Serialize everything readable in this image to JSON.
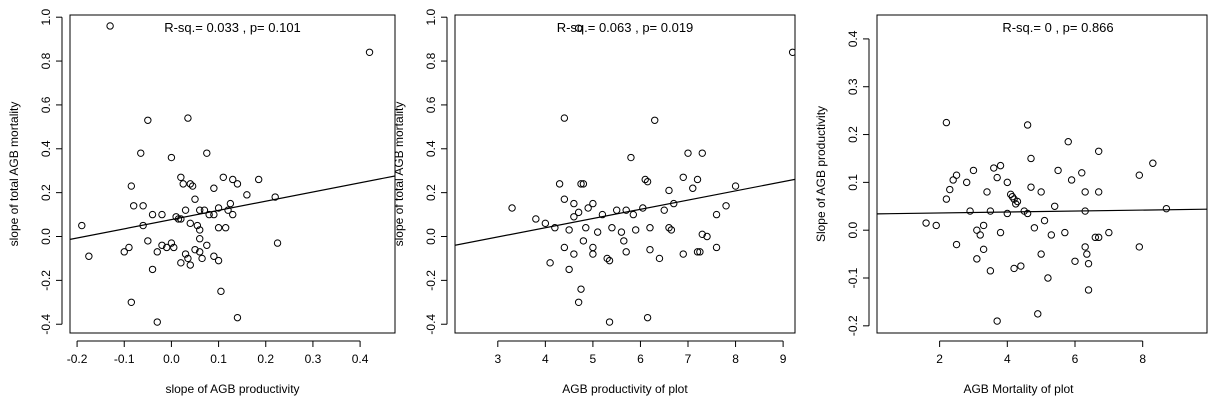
{
  "chart_data": [
    {
      "type": "scatter",
      "annotation": "R-sq.= 0.033 , p= 0.101",
      "x_label": "slope of AGB productivity",
      "y_label": "slope of total AGB mortality",
      "xlim": [
        -0.215,
        0.474
      ],
      "ylim": [
        -0.44,
        1.01
      ],
      "xticks": [
        -0.2,
        -0.1,
        {
          "value": 0,
          "label": "0.0"
        },
        0.1,
        0.2,
        0.3,
        0.4
      ],
      "yticks": [
        -0.4,
        -0.2,
        {
          "value": 0,
          "label": "0.0"
        },
        0.2,
        0.4,
        0.6,
        0.8,
        {
          "value": 1,
          "label": "1.0"
        }
      ],
      "fit": {
        "intercept": 0.077,
        "slope": 0.42
      },
      "x": [
        -0.13,
        0.42,
        -0.19,
        -0.175,
        -0.05,
        0.035,
        -0.065,
        0.075,
        0,
        -0.085,
        -0.08,
        -0.06,
        0.02,
        0.025,
        0.04,
        0.045,
        0.05,
        0.09,
        0.11,
        0.13,
        0.14,
        0.16,
        0.185,
        0.22,
        0.225,
        0.06,
        0.07,
        0.08,
        0.09,
        0.1,
        0.12,
        0.125,
        0.13,
        -0.04,
        -0.02,
        0.01,
        0.015,
        0.02,
        0.03,
        0.04,
        0.055,
        0.06,
        0.1,
        0.115,
        -0.1,
        -0.09,
        -0.06,
        -0.05,
        -0.03,
        -0.02,
        -0.01,
        0,
        0.005,
        0.02,
        0.03,
        0.035,
        0.04,
        0.05,
        0.06,
        0.065,
        0.075,
        0.09,
        0.1,
        0.105,
        -0.085,
        -0.03,
        0.14,
        0.06,
        -0.04
      ],
      "values": [
        0.96,
        0.84,
        0.05,
        -0.09,
        0.53,
        0.54,
        0.38,
        0.38,
        0.36,
        0.23,
        0.14,
        0.14,
        0.27,
        0.24,
        0.24,
        0.23,
        0.17,
        0.22,
        0.27,
        0.26,
        0.24,
        0.19,
        0.26,
        0.18,
        -0.03,
        0.12,
        0.12,
        0.1,
        0.1,
        0.13,
        0.12,
        0.15,
        0.1,
        0.1,
        0.1,
        0.09,
        0.08,
        0.08,
        0.12,
        0.06,
        0.05,
        0.03,
        0.04,
        0.04,
        -0.07,
        -0.05,
        0.05,
        -0.02,
        -0.07,
        -0.04,
        -0.05,
        -0.03,
        -0.05,
        -0.12,
        -0.08,
        -0.1,
        -0.13,
        -0.06,
        -0.07,
        -0.1,
        -0.04,
        -0.09,
        -0.11,
        -0.25,
        -0.3,
        -0.39,
        -0.37,
        -0.01,
        -0.15
      ]
    },
    {
      "type": "scatter",
      "annotation": "R-sq.= 0.063 , p= 0.019",
      "x_label": "AGB productivity of plot",
      "y_label": "slope of total AGB mortality",
      "xlim": [
        2.1,
        9.25
      ],
      "ylim": [
        -0.44,
        1.01
      ],
      "xticks": [
        3,
        4,
        5,
        6,
        7,
        8,
        9
      ],
      "yticks": [
        -0.4,
        -0.2,
        {
          "value": 0,
          "label": "0.0"
        },
        0.2,
        0.4,
        0.6,
        0.8,
        {
          "value": 1,
          "label": "1.0"
        }
      ],
      "fit": {
        "intercept": -0.128,
        "slope": 0.042
      },
      "x": [
        4.7,
        9.2,
        4.4,
        6.3,
        5.8,
        7,
        7.3,
        6.9,
        7.2,
        6.1,
        6.15,
        4.75,
        4.8,
        4.3,
        8,
        7.1,
        6.6,
        3.3,
        3.8,
        4.4,
        4.6,
        4.9,
        5,
        5.2,
        5.5,
        5.7,
        5.85,
        6.05,
        6.5,
        6.7,
        7.6,
        7.8,
        4,
        4.2,
        4.5,
        4.6,
        4.7,
        4.85,
        5.1,
        5.4,
        5.6,
        5.65,
        5.9,
        6.2,
        6.6,
        6.65,
        7.3,
        7.4,
        4.4,
        4.6,
        4.8,
        5,
        5.3,
        5.35,
        5.7,
        6.2,
        6.4,
        6.9,
        7.2,
        7.25,
        7.6,
        4.1,
        4.5,
        4.75,
        4.7,
        5.35,
        6.15,
        5
      ],
      "values": [
        0.95,
        0.84,
        0.54,
        0.53,
        0.36,
        0.38,
        0.38,
        0.27,
        0.26,
        0.26,
        0.25,
        0.24,
        0.24,
        0.24,
        0.23,
        0.22,
        0.21,
        0.13,
        0.08,
        0.17,
        0.15,
        0.13,
        0.15,
        0.1,
        0.12,
        0.12,
        0.1,
        0.13,
        0.12,
        0.15,
        0.1,
        0.14,
        0.06,
        0.04,
        0.03,
        0.09,
        0.11,
        0.04,
        0.02,
        0.04,
        0.02,
        -0.02,
        0.03,
        0.04,
        0.04,
        0.03,
        0.01,
        0,
        -0.05,
        -0.08,
        -0.02,
        -0.08,
        -0.1,
        -0.11,
        -0.07,
        -0.06,
        -0.1,
        -0.08,
        -0.07,
        -0.07,
        -0.05,
        -0.12,
        -0.15,
        -0.24,
        -0.3,
        -0.39,
        -0.37,
        -0.05
      ]
    },
    {
      "type": "scatter",
      "annotation": "R-sq.= 0 , p= 0.866",
      "x_label": "AGB Mortality of plot",
      "y_label": "Slope of AGB productivity",
      "xlim": [
        0.15,
        9.9
      ],
      "ylim": [
        -0.215,
        0.45
      ],
      "xticks": [
        2,
        4,
        6,
        8
      ],
      "yticks": [
        -0.2,
        -0.1,
        {
          "value": 0,
          "label": "0.0"
        },
        0.1,
        0.2,
        0.3,
        0.4
      ],
      "fit": {
        "intercept": 0.034,
        "slope": 0.001
      },
      "x": [
        2.2,
        4.6,
        5.8,
        6.7,
        4.7,
        8.3,
        3.6,
        3.8,
        3,
        2.5,
        2.4,
        2.8,
        3.7,
        4,
        5,
        5.5,
        5.9,
        6.2,
        7.9,
        2.3,
        2.2,
        3.4,
        4.1,
        4.15,
        4.2,
        4.3,
        4.25,
        4.7,
        6.3,
        6.7,
        1.6,
        1.9,
        2.9,
        3.1,
        3.3,
        3.5,
        4,
        4.5,
        4.6,
        5.4,
        5.1,
        6.3,
        8.7,
        3.2,
        3.8,
        4.8,
        5.3,
        5.7,
        6.6,
        6.7,
        7,
        2.5,
        3.3,
        4.2,
        4.4,
        5,
        5.2,
        6,
        6.3,
        6.35,
        6.4,
        7.9,
        3.5,
        6.4,
        3.7,
        4.9,
        3.1
      ],
      "values": [
        0.225,
        0.22,
        0.185,
        0.165,
        0.15,
        0.14,
        0.13,
        0.135,
        0.125,
        0.115,
        0.105,
        0.1,
        0.11,
        0.1,
        0.08,
        0.125,
        0.105,
        0.12,
        0.115,
        0.085,
        0.065,
        0.08,
        0.075,
        0.07,
        0.065,
        0.06,
        0.055,
        0.09,
        0.08,
        0.08,
        0.015,
        0.01,
        0.04,
        0,
        0.01,
        0.04,
        0.035,
        0.04,
        0.035,
        0.05,
        0.02,
        0.04,
        0.045,
        -0.01,
        -0.005,
        0.005,
        -0.01,
        -0.005,
        -0.015,
        -0.015,
        -0.005,
        -0.03,
        -0.04,
        -0.08,
        -0.075,
        -0.05,
        -0.1,
        -0.065,
        -0.035,
        -0.05,
        -0.07,
        -0.035,
        -0.085,
        -0.125,
        -0.19,
        -0.175,
        -0.06
      ]
    }
  ]
}
